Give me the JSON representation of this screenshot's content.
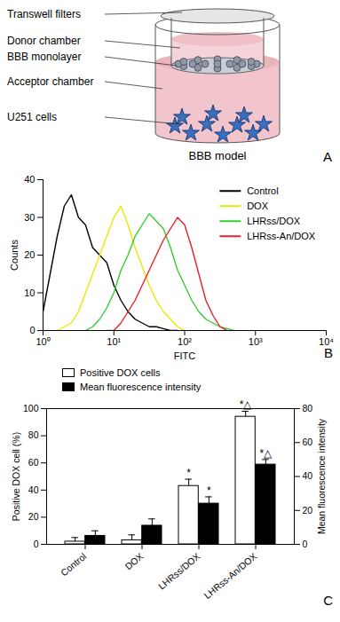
{
  "figure": {
    "panel_labels": [
      "A",
      "B",
      "C"
    ]
  },
  "diagram": {
    "labels": [
      "Transwell filters",
      "Donor chamber",
      "BBB monolayer",
      "Acceptor chamber",
      "U251 cells"
    ],
    "caption": "BBB model"
  },
  "chart_data": [
    {
      "type": "line",
      "xlabel": "FITC",
      "ylabel": "Counts",
      "log": "x",
      "x": [
        1,
        1.259,
        1.585,
        1.995,
        2.512,
        3.162,
        3.981,
        5.012,
        6.31,
        7.943,
        10,
        12.59,
        15.85,
        19.95,
        25.12,
        31.62,
        39.81,
        50.12,
        63.1,
        79.43,
        100,
        125.9,
        158.5,
        199.5,
        251.2,
        316.2,
        398.1,
        501.2,
        631,
        794.3,
        1000
      ],
      "xlim": [
        1,
        10000
      ],
      "xticks": [
        {
          "value": 1,
          "label": "10⁰"
        },
        {
          "value": 10,
          "label": "10¹"
        },
        {
          "value": 100,
          "label": "10²"
        },
        {
          "value": 1000,
          "label": "10³"
        },
        {
          "value": 10000,
          "label": "10⁴"
        }
      ],
      "ylim": [
        0,
        40
      ],
      "yticks": [
        0,
        10,
        20,
        30,
        40
      ],
      "legend": "top-right",
      "series": [
        {
          "name": "Control",
          "color": "#000000",
          "values": [
            5,
            15,
            25,
            33,
            36,
            30,
            28,
            22,
            20,
            18,
            12,
            8,
            5,
            3,
            2,
            1,
            1,
            0.5,
            0,
            0,
            null,
            null,
            null,
            null,
            null,
            null,
            null,
            null,
            null,
            null,
            null
          ]
        },
        {
          "name": "DOX",
          "color": "#e8e800",
          "values": [
            null,
            null,
            0,
            1,
            2,
            5,
            10,
            15,
            20,
            25,
            30,
            33,
            28,
            22,
            17,
            12,
            8,
            5,
            3,
            1,
            0,
            null,
            null,
            null,
            null,
            null,
            null,
            null,
            null,
            null,
            null
          ]
        },
        {
          "name": "LHRss/DOX",
          "color": "#33cc33",
          "values": [
            null,
            null,
            null,
            null,
            null,
            null,
            0,
            1,
            3,
            6,
            10,
            16,
            20,
            25,
            28,
            31,
            29,
            27,
            22,
            16,
            12,
            8,
            5,
            3,
            2,
            1,
            0.5,
            0,
            null,
            null,
            null
          ]
        },
        {
          "name": "LHRss-An/DOX",
          "color": "#e8202a",
          "values": [
            null,
            null,
            null,
            null,
            null,
            null,
            null,
            null,
            null,
            0,
            0,
            2,
            5,
            8,
            12,
            16,
            20,
            24,
            27,
            30,
            28,
            22,
            15,
            8,
            4,
            1,
            0,
            null,
            null,
            null,
            null
          ]
        }
      ]
    },
    {
      "type": "bar",
      "categories": [
        "Control",
        "DOX",
        "LHRss/DOX",
        "LHRss-An/DOX"
      ],
      "ylabel": "Positive DOX cell (%)",
      "y2label": "Mean fluorescence intensity",
      "ylim": [
        0,
        100
      ],
      "yticks": [
        0,
        20,
        40,
        60,
        80,
        100
      ],
      "y2lim": [
        0,
        80
      ],
      "y2ticks": [
        0,
        20,
        40,
        60,
        80
      ],
      "legend": "top",
      "series": [
        {
          "name": "Positive DOX cells",
          "color": "#ffffff",
          "values": [
            2,
            3,
            43,
            94
          ],
          "errors": [
            3,
            4,
            5,
            4
          ],
          "annotations": [
            null,
            null,
            "*",
            "*△"
          ]
        },
        {
          "name": "Mean fluorescence intensity",
          "color": "#000000",
          "axis": "y2",
          "values": [
            5,
            11,
            24,
            47
          ],
          "errors": [
            3,
            4,
            4,
            3
          ],
          "annotations": [
            null,
            null,
            "*",
            "*△"
          ]
        }
      ]
    }
  ]
}
